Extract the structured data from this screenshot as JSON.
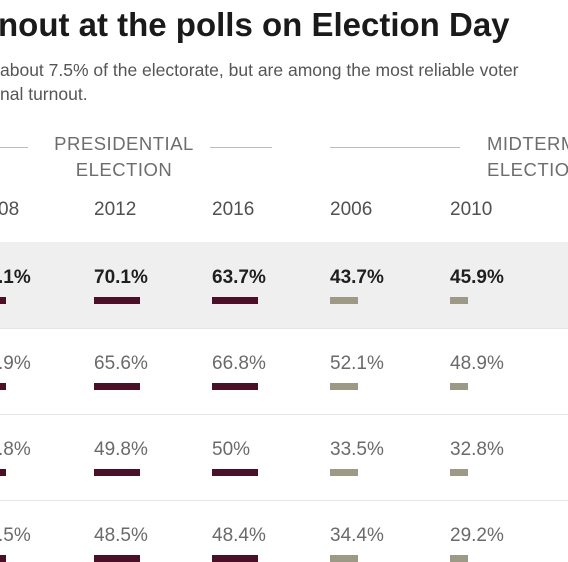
{
  "header": {
    "title": "nout at the polls on Election Day",
    "subtitle_line1": "about 7.5% of the electorate, but are among the most reliable voter",
    "subtitle_line2": "nal turnout."
  },
  "chart_data": {
    "type": "table",
    "groups": [
      {
        "label_line1": "PRESIDENTIAL",
        "label_line2": "ELECTION"
      },
      {
        "label_line1": "MIDTERM",
        "label_line2": "ELECTIO"
      }
    ],
    "columns": [
      {
        "year": "08",
        "type": "presidential"
      },
      {
        "year": "2012",
        "type": "presidential"
      },
      {
        "year": "2016",
        "type": "presidential"
      },
      {
        "year": "2006",
        "type": "midterm"
      },
      {
        "year": "2010",
        "type": "midterm"
      }
    ],
    "rows": [
      {
        "values": [
          ".1%",
          "70.1%",
          "63.7%",
          "43.7%",
          "45.9%"
        ],
        "highlight": true
      },
      {
        "values": [
          ".9%",
          "65.6%",
          "66.8%",
          "52.1%",
          "48.9%"
        ],
        "highlight": false
      },
      {
        "values": [
          ".8%",
          "49.8%",
          "50%",
          "33.5%",
          "32.8%"
        ],
        "highlight": false
      },
      {
        "values": [
          ".5%",
          "48.5%",
          "48.4%",
          "34.4%",
          "29.2%"
        ],
        "highlight": false
      }
    ],
    "colors": {
      "presidential": "#4a1028",
      "midterm": "#9c9a86",
      "highlight_row": "#efefef"
    }
  }
}
